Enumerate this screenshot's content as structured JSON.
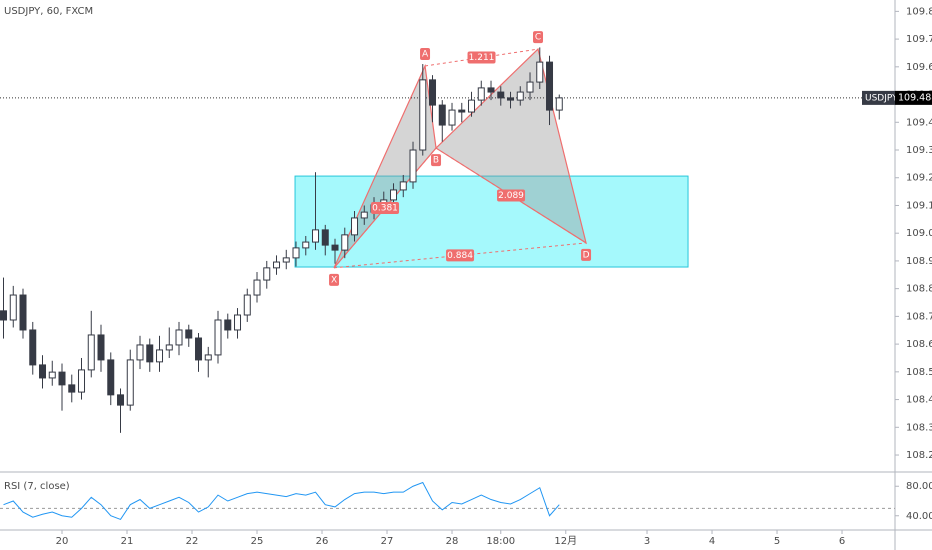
{
  "chart_data": {
    "type": "candlestick",
    "title": "USDJPY, 60, FXCM",
    "x": [
      -0.9,
      -0.75,
      -0.6,
      -0.45,
      -0.3,
      -0.15,
      0,
      0.15,
      0.3,
      0.45,
      0.6,
      0.75,
      0.9,
      1.05,
      1.2,
      1.35,
      1.5,
      1.65,
      1.8,
      1.95,
      2.1,
      2.25,
      2.4,
      2.55,
      2.7,
      2.85,
      3,
      3.15,
      3.3,
      3.45,
      3.6,
      3.75,
      3.9,
      4.05,
      4.2,
      4.35,
      4.5,
      4.65,
      4.8,
      4.95,
      5.1,
      5.25,
      5.4,
      5.55,
      5.7,
      5.85,
      6,
      6.15,
      6.3,
      6.45,
      6.6,
      6.75,
      6.9,
      7.05,
      7.2,
      7.35,
      7.5,
      7.65
    ],
    "open": [
      108.72,
      108.687,
      108.777,
      108.651,
      108.525,
      108.478,
      108.499,
      108.453,
      108.427,
      108.507,
      108.633,
      108.543,
      108.417,
      108.38,
      108.543,
      108.597,
      108.536,
      108.579,
      108.597,
      108.651,
      108.622,
      108.543,
      108.561,
      108.687,
      108.651,
      108.705,
      108.777,
      108.831,
      108.875,
      108.896,
      108.911,
      108.947,
      108.968,
      109.012,
      108.957,
      108.939,
      108.994,
      109.055,
      109.076,
      109.102,
      109.12,
      109.156,
      109.185,
      109.3,
      109.553,
      109.462,
      109.39,
      109.444,
      109.437,
      109.48,
      109.524,
      109.509,
      109.488,
      109.48,
      109.509,
      109.545,
      109.617,
      109.444
    ],
    "high": [
      108.84,
      108.81,
      108.8,
      108.68,
      108.56,
      108.54,
      108.53,
      108.49,
      108.55,
      108.72,
      108.67,
      108.57,
      108.44,
      108.58,
      108.63,
      108.62,
      108.63,
      108.66,
      108.68,
      108.67,
      108.64,
      108.59,
      108.72,
      108.71,
      108.73,
      108.8,
      108.86,
      108.9,
      108.92,
      108.94,
      108.97,
      108.99,
      109.22,
      109.03,
      108.98,
      109.02,
      109.08,
      109.1,
      109.13,
      109.15,
      109.18,
      109.21,
      109.33,
      109.61,
      109.57,
      109.48,
      109.47,
      109.47,
      109.51,
      109.55,
      109.55,
      109.53,
      109.51,
      109.53,
      109.58,
      109.67,
      109.64,
      109.5
    ],
    "low": [
      108.62,
      108.66,
      108.62,
      108.49,
      108.44,
      108.45,
      108.36,
      108.39,
      108.4,
      108.48,
      108.5,
      108.38,
      108.28,
      108.36,
      108.51,
      108.5,
      108.5,
      108.55,
      108.56,
      108.59,
      108.5,
      108.48,
      108.53,
      108.62,
      108.62,
      108.68,
      108.75,
      108.8,
      108.85,
      108.87,
      108.88,
      108.92,
      108.94,
      108.92,
      108.89,
      108.91,
      108.97,
      109.03,
      109.05,
      109.08,
      109.09,
      109.13,
      109.16,
      109.28,
      109.4,
      109.33,
      109.37,
      109.4,
      109.42,
      109.46,
      109.48,
      109.46,
      109.45,
      109.46,
      109.48,
      109.52,
      109.39,
      109.41
    ],
    "close": [
      108.687,
      108.777,
      108.651,
      108.525,
      108.478,
      108.499,
      108.453,
      108.427,
      108.507,
      108.633,
      108.543,
      108.417,
      108.38,
      108.543,
      108.597,
      108.536,
      108.579,
      108.597,
      108.651,
      108.622,
      108.543,
      108.561,
      108.687,
      108.651,
      108.705,
      108.777,
      108.831,
      108.875,
      108.896,
      108.911,
      108.947,
      108.968,
      109.012,
      108.957,
      108.939,
      108.994,
      109.055,
      109.076,
      109.102,
      109.12,
      109.156,
      109.185,
      109.3,
      109.553,
      109.462,
      109.39,
      109.444,
      109.437,
      109.48,
      109.524,
      109.509,
      109.488,
      109.48,
      109.509,
      109.545,
      109.617,
      109.444,
      109.488
    ],
    "up_color": "#ffffff",
    "down_color": "#363a45",
    "xlim": [
      -0.954,
      12.815
    ],
    "xticks": [
      {
        "value": 0,
        "label": "20"
      },
      {
        "value": 1,
        "label": "21"
      },
      {
        "value": 2,
        "label": "22"
      },
      {
        "value": 3,
        "label": "25"
      },
      {
        "value": 4,
        "label": "26"
      },
      {
        "value": 5,
        "label": "27"
      },
      {
        "value": 6,
        "label": "28"
      },
      {
        "value": 6.75,
        "label": "18:00"
      },
      {
        "value": 7.75,
        "label": "12月"
      },
      {
        "value": 9,
        "label": "3"
      },
      {
        "value": 10,
        "label": "4"
      },
      {
        "value": 11,
        "label": "5"
      },
      {
        "value": 12,
        "label": "6"
      }
    ],
    "ylim": [
      108.146,
      109.841
    ],
    "yticks": [
      {
        "value": 108.2,
        "label": "108.200"
      },
      {
        "value": 108.3,
        "label": "108.300"
      },
      {
        "value": 108.4,
        "label": "108.400"
      },
      {
        "value": 108.5,
        "label": "108.500"
      },
      {
        "value": 108.6,
        "label": "108.600"
      },
      {
        "value": 108.7,
        "label": "108.700"
      },
      {
        "value": 108.8,
        "label": "108.800"
      },
      {
        "value": 108.9,
        "label": "108.900"
      },
      {
        "value": 109.0,
        "label": "109.000"
      },
      {
        "value": 109.1,
        "label": "109.100"
      },
      {
        "value": 109.2,
        "label": "109.200"
      },
      {
        "value": 109.3,
        "label": "109.300"
      },
      {
        "value": 109.4,
        "label": "109.400"
      },
      {
        "value": 109.5,
        "label": "109.500"
      },
      {
        "value": 109.6,
        "label": "109.600"
      },
      {
        "value": 109.7,
        "label": "109.700"
      },
      {
        "value": 109.8,
        "label": "109.800"
      }
    ],
    "last_price": {
      "symbol": "USDJPY",
      "value": 109.488
    },
    "zone": {
      "x": [
        3.585,
        9.631
      ],
      "y": [
        109.206,
        108.878
      ],
      "color": "#8ef7fb"
    },
    "pattern": {
      "color": "#ef6e6e",
      "points": [
        {
          "label": "X",
          "x": 4.185,
          "y": 108.875
        },
        {
          "label": "A",
          "x": 5.585,
          "y": 109.603
        },
        {
          "label": "B",
          "x": 5.754,
          "y": 109.307
        },
        {
          "label": "C",
          "x": 7.323,
          "y": 109.664
        },
        {
          "label": "D",
          "x": 8.062,
          "y": 108.965
        }
      ],
      "ratios": [
        0.381,
        1.211,
        2.089,
        0.884
      ]
    },
    "rsi": {
      "label": "RSI (7, close)",
      "color": "#2196f3",
      "values": [
        55,
        60,
        45,
        38,
        42,
        45,
        40,
        38,
        50,
        65,
        55,
        40,
        35,
        55,
        62,
        50,
        55,
        60,
        65,
        58,
        45,
        52,
        68,
        60,
        65,
        70,
        72,
        70,
        68,
        66,
        70,
        68,
        72,
        55,
        52,
        62,
        70,
        72,
        72,
        70,
        72,
        72,
        80,
        85,
        60,
        48,
        58,
        56,
        62,
        68,
        62,
        58,
        56,
        62,
        70,
        78,
        40,
        55
      ],
      "ylim": [
        23.4,
        96.6
      ],
      "yticks": [
        {
          "value": 80,
          "label": "80.00"
        },
        {
          "value": 40,
          "label": "40.00"
        }
      ]
    }
  }
}
